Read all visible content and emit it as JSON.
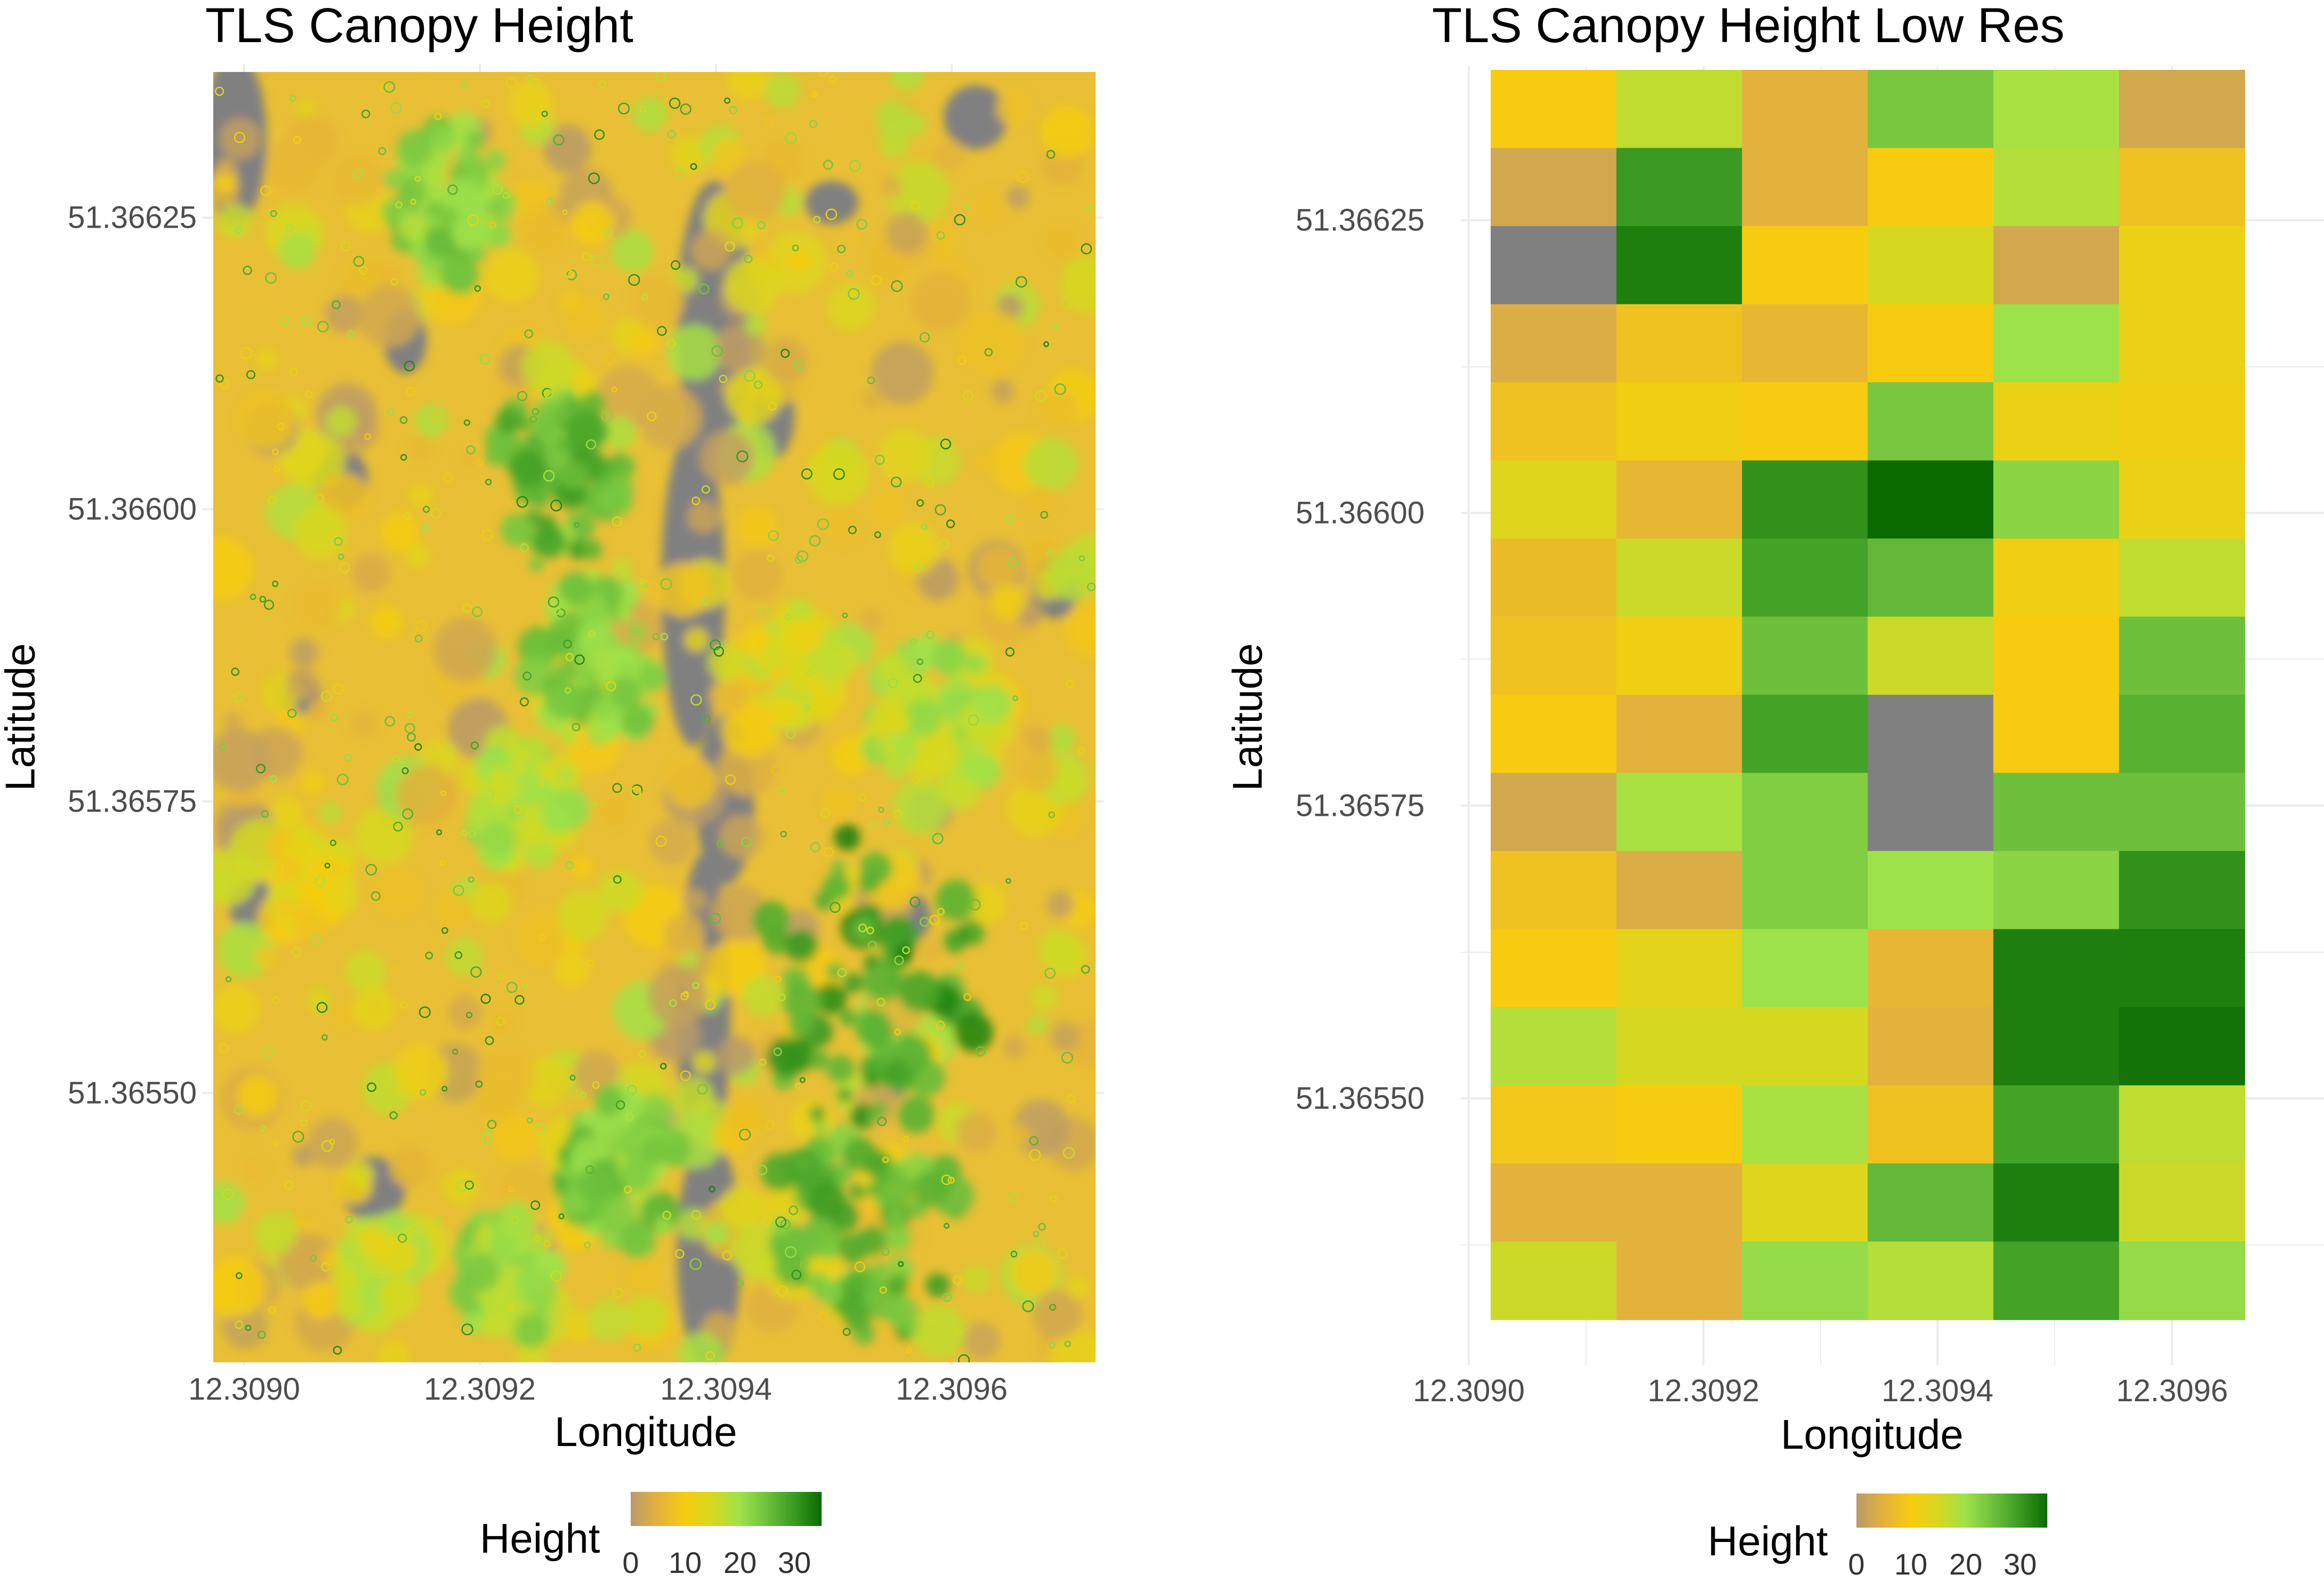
{
  "colors": {
    "ramp": [
      "#b99a6a",
      "#e3b23c",
      "#f7cc10",
      "#d6d820",
      "#9ee24a",
      "#6ec03c",
      "#3a9a22",
      "#0b6b00"
    ],
    "nodata": "#808080",
    "grid": "#ececec"
  },
  "chart_data": [
    {
      "type": "heatmap",
      "title": "TLS Canopy Height",
      "xlabel": "Longitude",
      "ylabel": "Latitude",
      "x_ticks": [
        "12.3090",
        "12.3092",
        "12.3094",
        "12.3096"
      ],
      "y_ticks": [
        "51.36625",
        "51.36600",
        "51.36575",
        "51.36550"
      ],
      "xlim": [
        12.309,
        12.30975
      ],
      "ylim": [
        51.36528,
        51.36638
      ],
      "legend": {
        "title": "Height",
        "labels": [
          "0",
          "10",
          "20",
          "30"
        ],
        "range": [
          0,
          35
        ],
        "position": "bottom"
      },
      "grid": true,
      "resolution": "high",
      "nodata_gaps": true
    },
    {
      "type": "heatmap",
      "title": "TLS Canopy Height Low Res",
      "xlabel": "Longitude",
      "ylabel": "Latitude",
      "x_ticks": [
        "12.3090",
        "12.3092",
        "12.3094",
        "12.3096"
      ],
      "y_ticks": [
        "51.36625",
        "51.36600",
        "51.36575",
        "51.36550"
      ],
      "xlim": [
        12.309022,
        12.309658
      ],
      "ylim": [
        51.365305,
        51.36637
      ],
      "legend": {
        "title": "Height",
        "labels": [
          "0",
          "10",
          "20",
          "30"
        ],
        "range": [
          0,
          35
        ],
        "position": "bottom"
      },
      "grid": true,
      "columns": 6,
      "rows": 16,
      "values": [
        [
          10,
          17,
          5,
          24,
          19,
          3
        ],
        [
          3,
          30,
          5,
          10,
          18,
          8
        ],
        [
          null,
          33,
          10,
          15,
          3,
          12
        ],
        [
          4,
          8,
          6,
          10,
          20,
          12
        ],
        [
          8,
          11,
          10,
          24,
          12,
          11
        ],
        [
          14,
          6,
          31,
          35,
          22,
          12
        ],
        [
          7,
          16,
          29,
          26,
          11,
          17
        ],
        [
          8,
          11,
          25,
          16,
          10,
          25
        ],
        [
          10,
          5,
          29,
          null,
          10,
          27
        ],
        [
          3,
          19,
          23,
          null,
          25,
          25
        ],
        [
          8,
          4,
          23,
          20,
          22,
          31
        ],
        [
          10,
          13,
          20,
          6,
          33,
          33
        ],
        [
          18,
          15,
          15,
          5,
          33,
          34
        ],
        [
          9,
          10,
          19,
          8,
          29,
          17
        ],
        [
          5,
          5,
          14,
          26,
          33,
          16
        ],
        [
          16,
          5,
          21,
          18,
          29,
          21
        ]
      ]
    }
  ]
}
